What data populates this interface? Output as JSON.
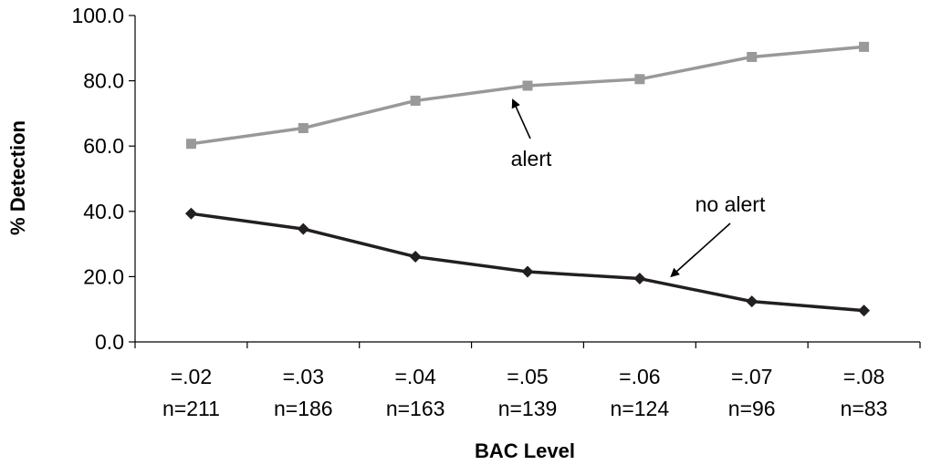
{
  "chart_data": {
    "type": "line",
    "xlabel": "BAC Level",
    "ylabel": "% Detection",
    "ylim": [
      0,
      100
    ],
    "y_ticks": [
      "0.0",
      "20.0",
      "40.0",
      "60.0",
      "80.0",
      "100.0"
    ],
    "grid": false,
    "categories": [
      {
        "bac": "=.02",
        "n": "n=211"
      },
      {
        "bac": "=.03",
        "n": "n=186"
      },
      {
        "bac": "=.04",
        "n": "n=163"
      },
      {
        "bac": "=.05",
        "n": "n=139"
      },
      {
        "bac": "=.06",
        "n": "n=124"
      },
      {
        "bac": "=.07",
        "n": "n=96"
      },
      {
        "bac": "=.08",
        "n": "n=83"
      }
    ],
    "series": [
      {
        "name": "alert",
        "color": "#999999",
        "marker": "square",
        "values": [
          60.7,
          65.5,
          73.9,
          78.5,
          80.5,
          87.3,
          90.4
        ]
      },
      {
        "name": "no alert",
        "color": "#231f1f",
        "marker": "diamond",
        "values": [
          39.3,
          34.6,
          26.1,
          21.5,
          19.4,
          12.4,
          9.6
        ]
      }
    ],
    "annotations": [
      {
        "text": "alert",
        "series": "alert",
        "arrow_to_index": 3
      },
      {
        "text": "no alert",
        "series": "no alert",
        "arrow_to_index": 4.3
      }
    ]
  }
}
